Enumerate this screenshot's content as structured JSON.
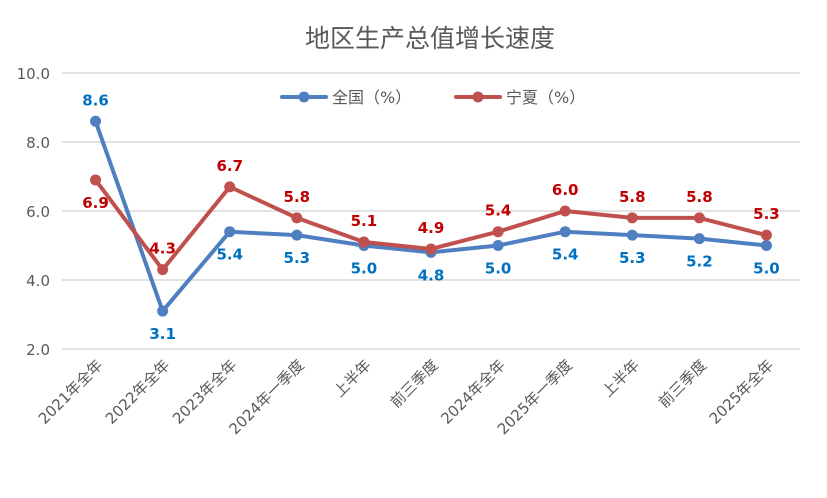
{
  "chart_data": {
    "type": "line",
    "title": "地区生产总值增长速度",
    "categories": [
      "2021年全年",
      "2022年全年",
      "2023年全年",
      "2024年一季度",
      "上半年",
      "前三季度",
      "2024年全年",
      "2025年一季度",
      "上半年",
      "前三季度",
      "2025年全年"
    ],
    "series": [
      {
        "name": "全国（%）",
        "values": [
          8.6,
          3.1,
          5.4,
          5.3,
          5.0,
          4.8,
          5.0,
          5.4,
          5.3,
          5.2,
          5.0
        ],
        "color": "#4F7FC0",
        "label_color": "#0070C0"
      },
      {
        "name": "宁夏（%）",
        "values": [
          6.9,
          4.3,
          6.7,
          5.8,
          5.1,
          4.9,
          5.4,
          6.0,
          5.8,
          5.8,
          5.3
        ],
        "color": "#C0504D",
        "label_color": "#C00000"
      }
    ],
    "yticks": [
      "2.0",
      "4.0",
      "6.0",
      "8.0",
      "10.0"
    ],
    "ylim": [
      2,
      10
    ],
    "grid": true,
    "legend_position": "top-center"
  }
}
